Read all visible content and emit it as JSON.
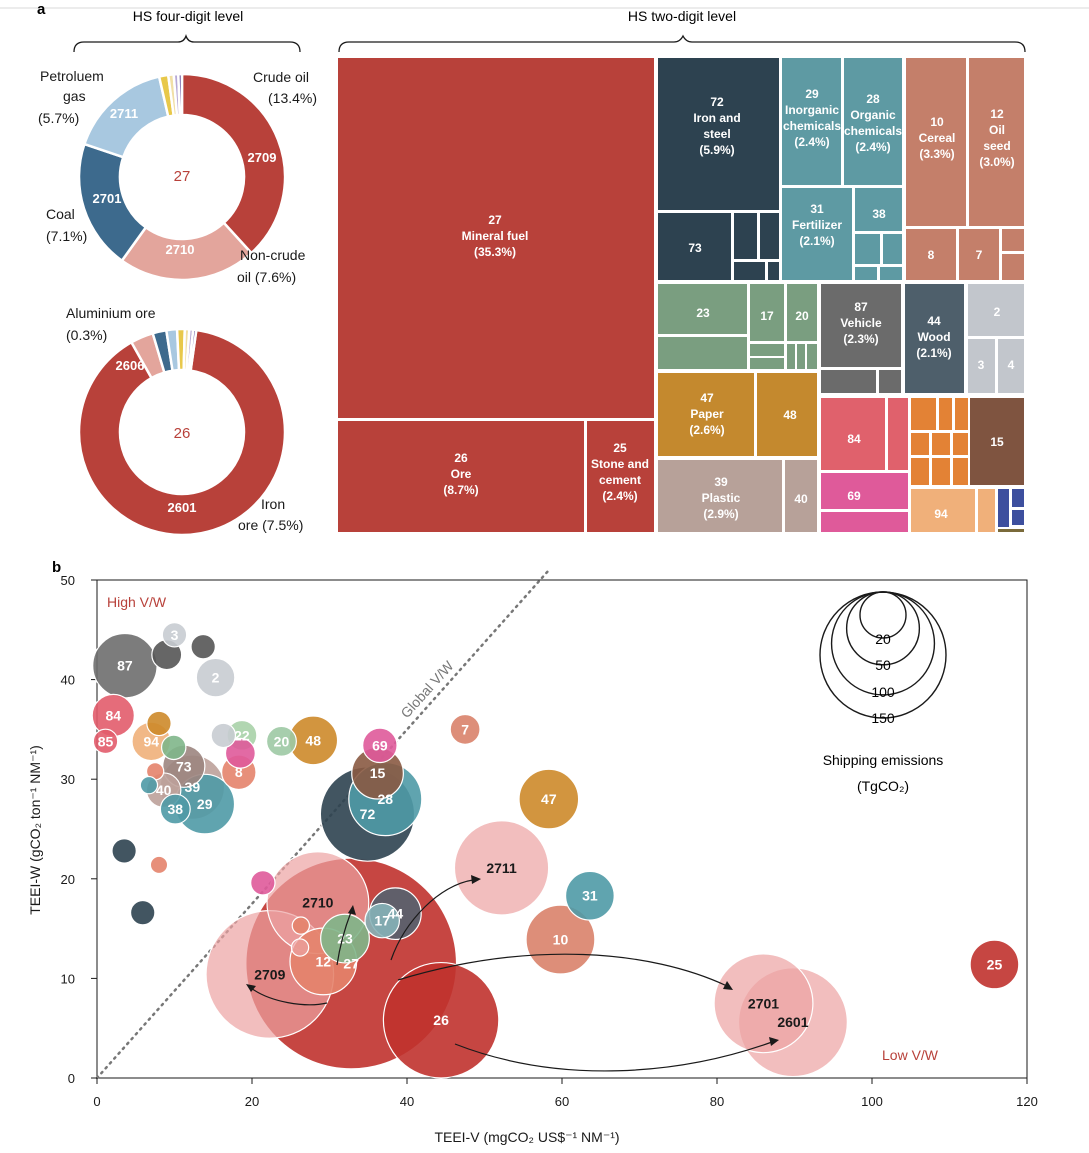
{
  "panel_labels": {
    "a": "a",
    "b": "b"
  },
  "headers": {
    "four_digit": "HS four-digit level",
    "two_digit": "HS two-digit level"
  },
  "chart_data": [
    {
      "type": "pie",
      "hole": true,
      "center_label": "27",
      "slices": [
        {
          "code": "2709",
          "value": 13.4,
          "color": "#b8413a",
          "outside_label": [
            "Crude oil",
            "(13.4%)"
          ]
        },
        {
          "code": "2710",
          "value": 7.6,
          "color": "#e3a59c",
          "outside_label": [
            "Non-crude",
            "oil (7.6%)"
          ]
        },
        {
          "code": "2701",
          "value": 7.1,
          "color": "#3d6a8d",
          "outside_label": [
            "Coal",
            "(7.1%)"
          ]
        },
        {
          "code": "2711",
          "value": 5.7,
          "color": "#a8c8e0",
          "outside_label": [
            "Petroluem",
            "gas",
            "(5.7%)"
          ]
        },
        {
          "code": "",
          "value": 0.5,
          "color": "#e8c84a",
          "outside_label": []
        },
        {
          "code": "",
          "value": 0.3,
          "color": "#f1dfa6",
          "outside_label": []
        },
        {
          "code": "",
          "value": 0.25,
          "color": "#b7a9d6",
          "outside_label": []
        },
        {
          "code": "",
          "value": 0.2,
          "color": "#6d5aa4",
          "outside_label": []
        }
      ]
    },
    {
      "type": "pie",
      "hole": true,
      "center_label": "26",
      "slices": [
        {
          "code": "2601",
          "value": 7.5,
          "color": "#b8413a",
          "outside_label": [
            "Iron",
            "ore (7.5%)"
          ]
        },
        {
          "code": "2606",
          "value": 0.3,
          "color": "#e3a59c",
          "outside_label": [
            "Aluminium ore",
            "(0.3%)"
          ]
        },
        {
          "code": "",
          "value": 0.18,
          "color": "#3d6a8d",
          "outside_label": []
        },
        {
          "code": "",
          "value": 0.14,
          "color": "#a8c8e0",
          "outside_label": []
        },
        {
          "code": "",
          "value": 0.1,
          "color": "#e8c84a",
          "outside_label": []
        },
        {
          "code": "",
          "value": 0.06,
          "color": "#f1dfa6",
          "outside_label": []
        },
        {
          "code": "",
          "value": 0.05,
          "color": "#b7a9d6",
          "outside_label": []
        },
        {
          "code": "",
          "value": 0.04,
          "color": "#6d5aa4",
          "outside_label": []
        }
      ]
    },
    {
      "type": "treemap",
      "tiles": [
        {
          "lines": [
            "27",
            "Mineral fuel",
            "(35.3%)"
          ],
          "share": 35.3
        },
        {
          "lines": [
            "26",
            "Ore",
            "(8.7%)"
          ],
          "share": 8.7
        },
        {
          "lines": [
            "25",
            "Stone and",
            "cement",
            "(2.4%)"
          ],
          "share": 2.4
        },
        {
          "lines": [
            "72",
            "Iron and",
            "steel",
            "(5.9%)"
          ],
          "share": 5.9
        },
        {
          "lines": [
            "73"
          ]
        },
        {
          "lines": [
            "29",
            "Inorganic",
            "chemicals",
            "(2.4%)"
          ],
          "share": 2.4
        },
        {
          "lines": [
            "28",
            "Organic",
            "chemicals",
            "(2.4%)"
          ],
          "share": 2.4
        },
        {
          "lines": [
            "31",
            "Fertilizer",
            "(2.1%)"
          ],
          "share": 2.1
        },
        {
          "lines": [
            "38"
          ]
        },
        {
          "lines": [
            "10",
            "Cereal",
            "(3.3%)"
          ],
          "share": 3.3
        },
        {
          "lines": [
            "12",
            "Oil",
            "seed",
            "(3.0%)"
          ],
          "share": 3.0
        },
        {
          "lines": [
            "8"
          ]
        },
        {
          "lines": [
            "7"
          ]
        },
        {
          "lines": [
            "23"
          ]
        },
        {
          "lines": [
            "17"
          ]
        },
        {
          "lines": [
            "20"
          ]
        },
        {
          "lines": [
            "87",
            "Vehicle",
            "(2.3%)"
          ],
          "share": 2.3
        },
        {
          "lines": [
            "44",
            "Wood",
            "(2.1%)"
          ],
          "share": 2.1
        },
        {
          "lines": [
            "2"
          ]
        },
        {
          "lines": [
            "3"
          ]
        },
        {
          "lines": [
            "4"
          ]
        },
        {
          "lines": [
            "47",
            "Paper",
            "(2.6%)"
          ],
          "share": 2.6
        },
        {
          "lines": [
            "48"
          ]
        },
        {
          "lines": [
            "39",
            "Plastic",
            "(2.9%)"
          ],
          "share": 2.9
        },
        {
          "lines": [
            "40"
          ]
        },
        {
          "lines": [
            "84"
          ]
        },
        {
          "lines": [
            "69"
          ]
        },
        {
          "lines": [
            "15"
          ]
        },
        {
          "lines": [
            "94"
          ]
        }
      ]
    },
    {
      "type": "scatter",
      "xlabel": "TEEI-V (mgCO₂ US$⁻¹ NM⁻¹)",
      "ylabel": "TEEI-W (gCO₂ ton⁻¹ NM⁻¹)",
      "xlim": [
        0,
        120
      ],
      "ylim": [
        0,
        50
      ],
      "xticks": [
        "0",
        "20",
        "40",
        "60",
        "80",
        "100",
        "120"
      ],
      "yticks": [
        "0",
        "10",
        "20",
        "30",
        "40",
        "50"
      ],
      "annotations": {
        "high": "High V/W",
        "low": "Low V/W",
        "global": "Global V/W"
      },
      "size_legend": {
        "values": [
          "20",
          "50",
          "100",
          "150"
        ],
        "title": [
          "Shipping emissions",
          "(TgCO₂)"
        ]
      },
      "points": [
        {
          "label": "27",
          "x": 32.8,
          "y": 11.5,
          "emissions": 150,
          "color": "#c0322e"
        },
        {
          "label": "2709",
          "x": 22.3,
          "y": 10.4,
          "emissions": 55,
          "color": "#eca3a3"
        },
        {
          "label": "2710",
          "x": 28.5,
          "y": 17.6,
          "emissions": 35,
          "color": "#eca3a3"
        },
        {
          "label": "2711",
          "x": 52.2,
          "y": 21.1,
          "emissions": 30,
          "color": "#eca3a3"
        },
        {
          "label": "2701",
          "x": 86.0,
          "y": 7.5,
          "emissions": 33,
          "color": "#eca3a3"
        },
        {
          "label": "2601",
          "x": 89.8,
          "y": 5.6,
          "emissions": 40,
          "color": "#eca3a3"
        },
        {
          "label": "26",
          "x": 44.4,
          "y": 5.8,
          "emissions": 45,
          "color": "#c0322e"
        },
        {
          "label": "25",
          "x": 115.8,
          "y": 11.4,
          "emissions": 8,
          "color": "#c0322e"
        },
        {
          "label": "10",
          "x": 59.8,
          "y": 13.9,
          "emissions": 16,
          "color": "#d9826a"
        },
        {
          "label": "31",
          "x": 63.6,
          "y": 18.3,
          "emissions": 8,
          "color": "#4f9aa6"
        },
        {
          "label": "47",
          "x": 58.3,
          "y": 28.0,
          "emissions": 12,
          "color": "#cd8a2a"
        },
        {
          "label": "7",
          "x": 47.5,
          "y": 35.0,
          "emissions": 3,
          "color": "#d9826a"
        },
        {
          "label": "44",
          "x": 38.5,
          "y": 16.5,
          "emissions": 9,
          "color": "#54626f"
        },
        {
          "label": "17",
          "x": 36.8,
          "y": 15.8,
          "emissions": 4,
          "color": "#86b3b8"
        },
        {
          "label": "23",
          "x": 32.0,
          "y": 14.0,
          "emissions": 8,
          "color": "#7fb68a"
        },
        {
          "label": "12",
          "x": 29.2,
          "y": 11.7,
          "emissions": 15,
          "color": "#e4836b"
        },
        {
          "label": "72",
          "x": 34.9,
          "y": 26.5,
          "emissions": 30,
          "color": "#2d4250"
        },
        {
          "label": "28",
          "x": 37.2,
          "y": 28.0,
          "emissions": 18,
          "color": "#4f9aa6"
        },
        {
          "label": "15",
          "x": 36.2,
          "y": 30.6,
          "emissions": 9,
          "color": "#8a5a42"
        },
        {
          "label": "69",
          "x": 36.5,
          "y": 33.4,
          "emissions": 4,
          "color": "#df5a9a"
        },
        {
          "label": "48",
          "x": 27.9,
          "y": 33.9,
          "emissions": 8,
          "color": "#cd8a2a"
        },
        {
          "label": "20",
          "x": 23.8,
          "y": 33.8,
          "emissions": 3,
          "color": "#9dc9a4"
        },
        {
          "label": "22",
          "x": 18.7,
          "y": 34.4,
          "emissions": 3,
          "color": "#a8d1a8"
        },
        {
          "label": "8",
          "x": 18.3,
          "y": 30.7,
          "emissions": 4,
          "color": "#e4836b"
        },
        {
          "label": "87",
          "x": 3.6,
          "y": 41.4,
          "emissions": 14,
          "color": "#6e6e6e"
        },
        {
          "label": "3",
          "x": 10.0,
          "y": 44.5,
          "emissions": 2,
          "color": "#c8ccd2"
        },
        {
          "label": "2",
          "x": 15.3,
          "y": 40.2,
          "emissions": 5,
          "color": "#c8ccd2"
        },
        {
          "label": "84",
          "x": 2.1,
          "y": 36.4,
          "emissions": 6,
          "color": "#e25c6b"
        },
        {
          "label": "94",
          "x": 7.0,
          "y": 33.8,
          "emissions": 5,
          "color": "#f0b07a"
        },
        {
          "label": "85",
          "x": 1.1,
          "y": 33.8,
          "emissions": 2,
          "color": "#e25c6b"
        },
        {
          "label": "73",
          "x": 11.2,
          "y": 31.3,
          "emissions": 6,
          "color": "#9c8580"
        },
        {
          "label": "40",
          "x": 8.6,
          "y": 28.9,
          "emissions": 4,
          "color": "#bca19a"
        },
        {
          "label": "39",
          "x": 12.3,
          "y": 29.2,
          "emissions": 14,
          "color": "#bca19a"
        },
        {
          "label": "38",
          "x": 10.1,
          "y": 27.0,
          "emissions": 3,
          "color": "#4f9aa6"
        },
        {
          "label": "29",
          "x": 13.9,
          "y": 27.5,
          "emissions": 12,
          "color": "#4f9aa6"
        },
        {
          "label": "",
          "x": 9.0,
          "y": 42.5,
          "emissions": 3,
          "color": "#555555"
        },
        {
          "label": "",
          "x": 13.7,
          "y": 43.3,
          "emissions": 2,
          "color": "#555555"
        },
        {
          "label": "",
          "x": 8.0,
          "y": 35.6,
          "emissions": 2,
          "color": "#cd8a2a"
        },
        {
          "label": "",
          "x": 9.9,
          "y": 33.2,
          "emissions": 2,
          "color": "#7fb68a"
        },
        {
          "label": "",
          "x": 16.3,
          "y": 34.4,
          "emissions": 2,
          "color": "#c8ccd2"
        },
        {
          "label": "",
          "x": 18.5,
          "y": 32.6,
          "emissions": 3,
          "color": "#df5a9a"
        },
        {
          "label": "",
          "x": 7.5,
          "y": 30.8,
          "emissions": 1,
          "color": "#e4836b"
        },
        {
          "label": "",
          "x": 6.7,
          "y": 29.4,
          "emissions": 1,
          "color": "#4f9aa6"
        },
        {
          "label": "",
          "x": 3.5,
          "y": 22.8,
          "emissions": 2,
          "color": "#2d4250"
        },
        {
          "label": "",
          "x": 8.0,
          "y": 21.4,
          "emissions": 1,
          "color": "#e4836b"
        },
        {
          "label": "",
          "x": 21.4,
          "y": 19.6,
          "emissions": 2,
          "color": "#df5a9a"
        },
        {
          "label": "",
          "x": 5.9,
          "y": 16.6,
          "emissions": 2,
          "color": "#2d4250"
        },
        {
          "label": "",
          "x": 26.3,
          "y": 15.3,
          "emissions": 1,
          "color": "#e4836b"
        },
        {
          "label": "",
          "x": 26.2,
          "y": 13.1,
          "emissions": 1,
          "color": "#eca3a3"
        }
      ]
    }
  ]
}
